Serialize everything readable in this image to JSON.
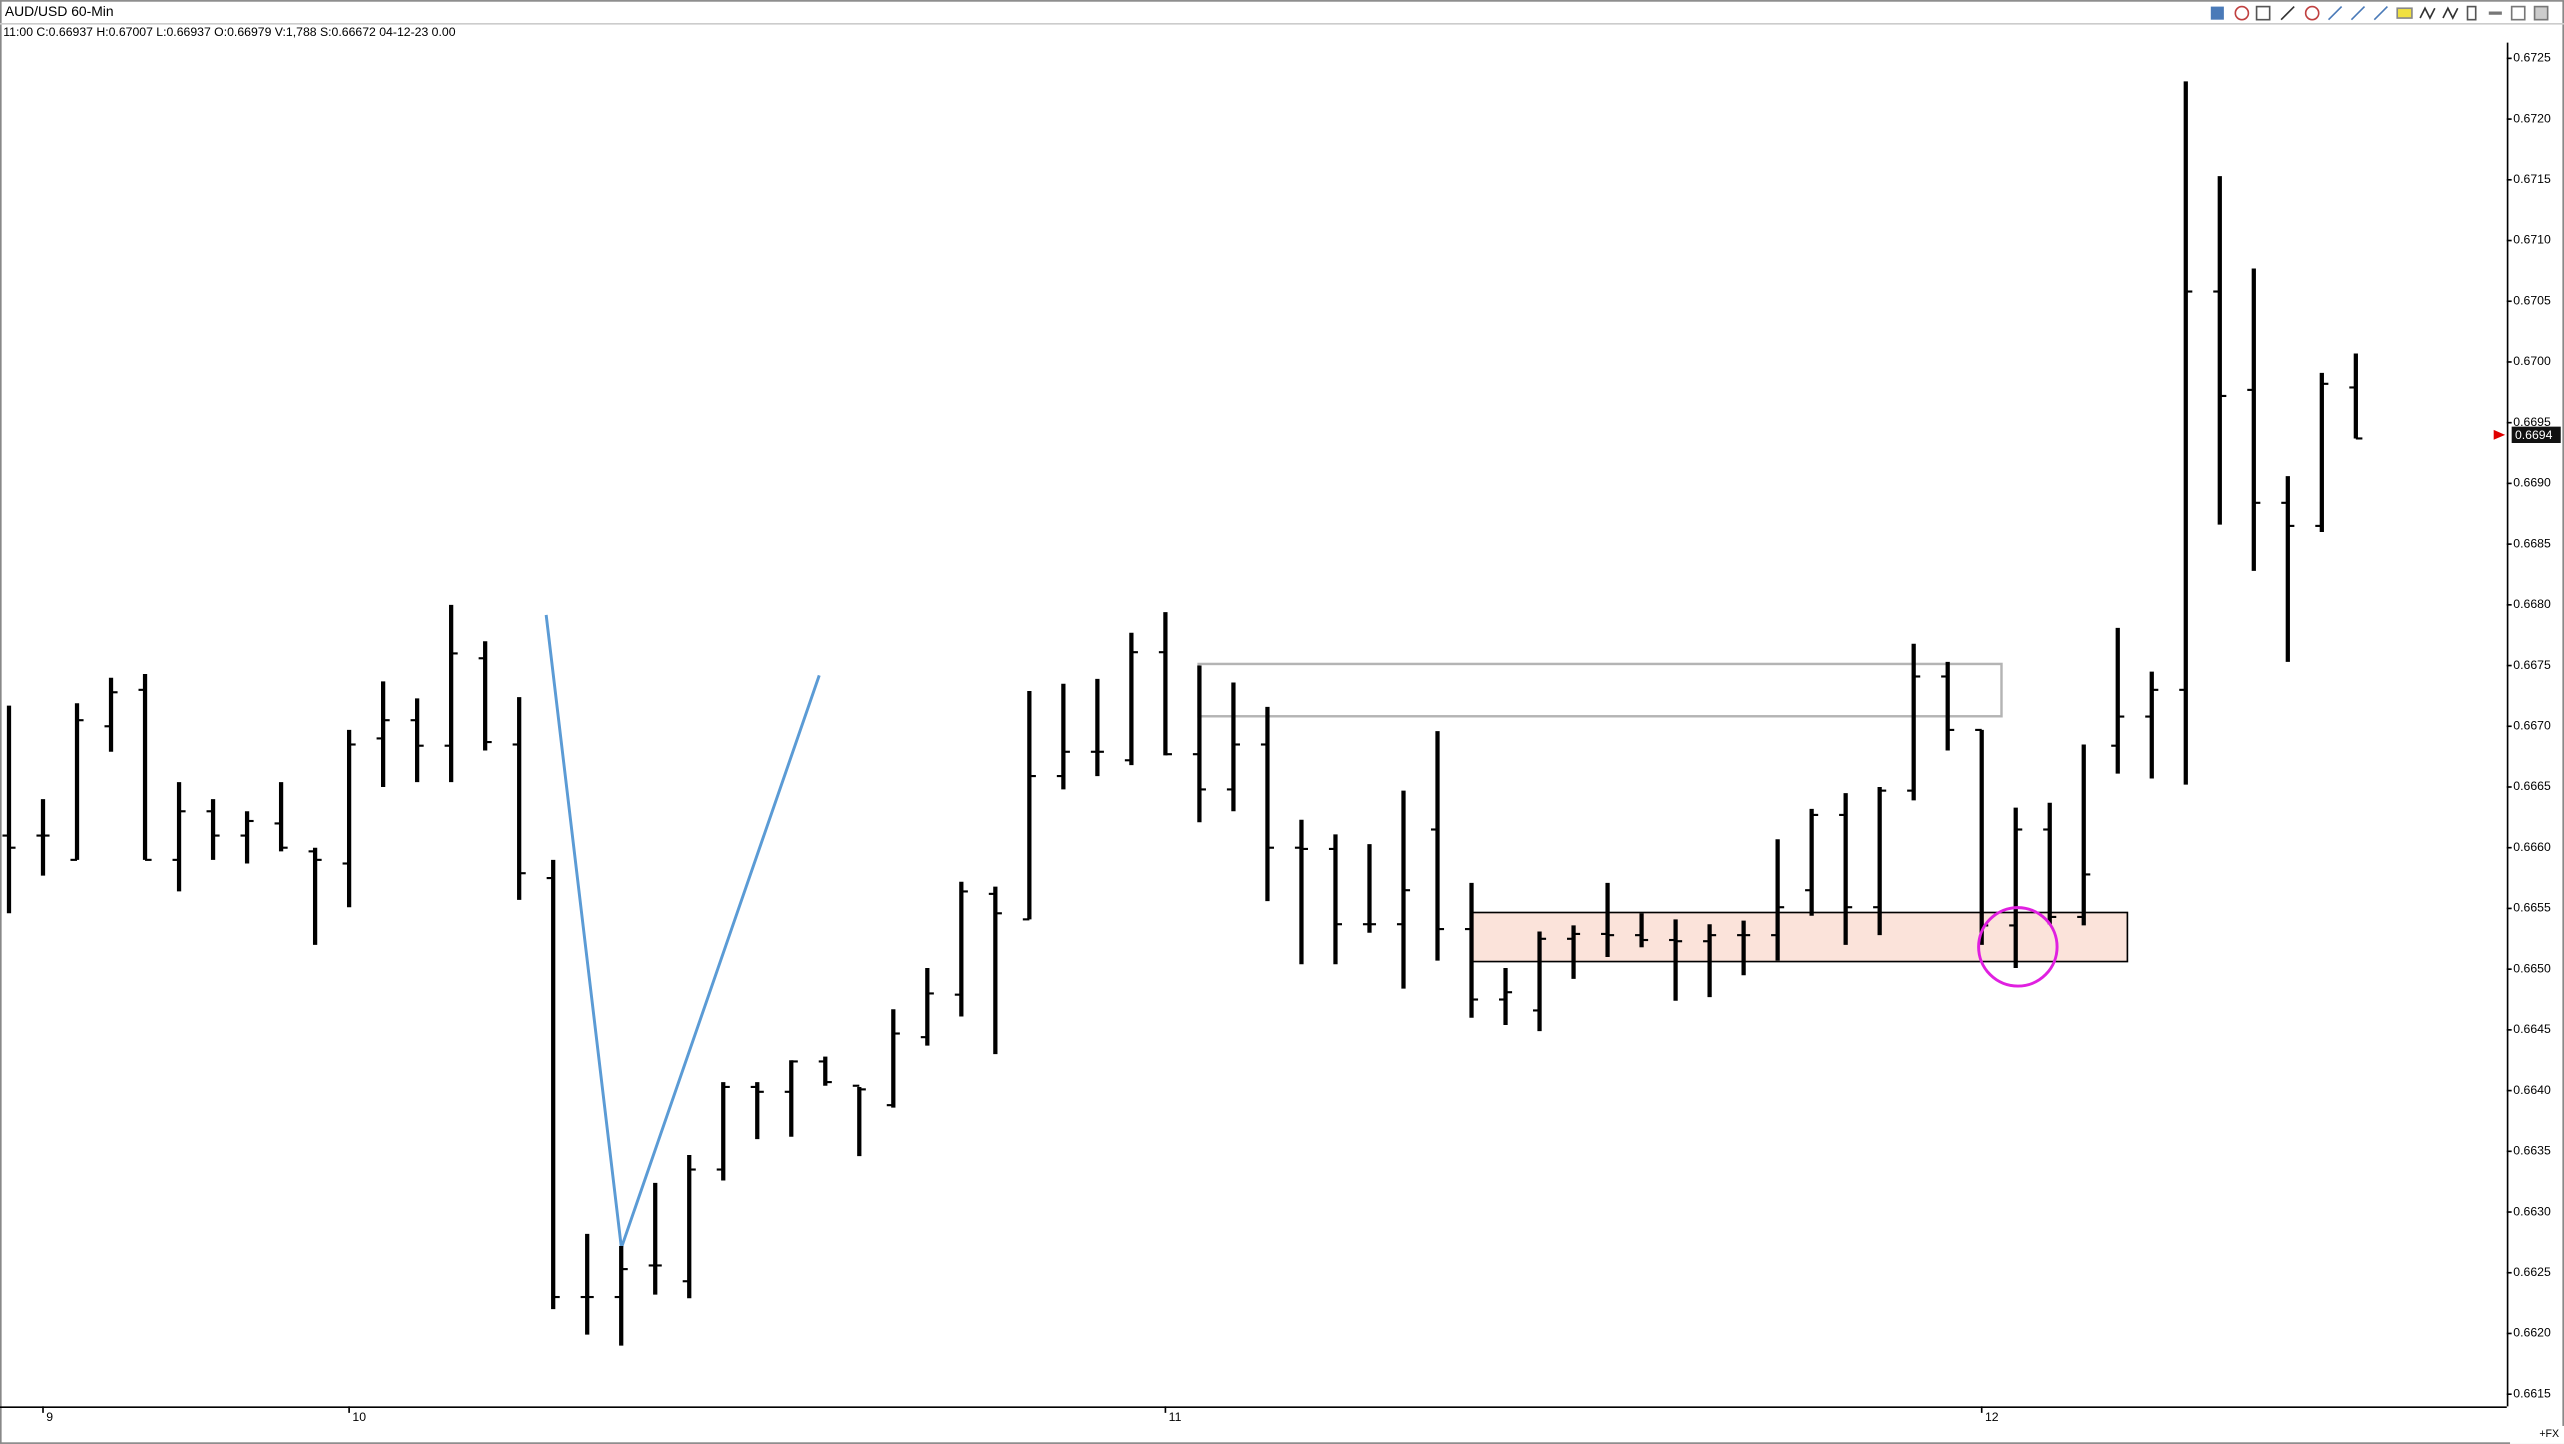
{
  "chart_data": {
    "type": "ohlc",
    "title": "AUD/USD 60-Min",
    "subtitle": "11:00 C:0.66937 H:0.67007 L:0.66937 O:0.66979 V:1,788 S:0.66672 04-12-23 0.00",
    "footer_label": "+FX",
    "color": "#000000",
    "last_price": 0.6694,
    "last_price_color": "#e00000",
    "categories": [
      null,
      "9",
      null,
      null,
      null,
      null,
      null,
      null,
      null,
      null,
      "10",
      null,
      null,
      null,
      null,
      null,
      null,
      null,
      null,
      null,
      null,
      null,
      null,
      null,
      null,
      null,
      null,
      null,
      null,
      null,
      null,
      null,
      null,
      null,
      "11",
      null,
      null,
      null,
      null,
      null,
      null,
      null,
      null,
      null,
      null,
      null,
      null,
      null,
      null,
      null,
      null,
      null,
      null,
      null,
      null,
      null,
      null,
      null,
      "12",
      null,
      null,
      null,
      null,
      null,
      null,
      null,
      null,
      null,
      null,
      null
    ],
    "open": [
      0.6661,
      0.6661,
      0.6659,
      0.667,
      0.6673,
      0.6659,
      0.6663,
      0.6661,
      0.6662,
      0.66597,
      0.66587,
      0.6669,
      0.66705,
      0.66684,
      0.66756,
      0.66685,
      0.66575,
      0.6623,
      0.6623,
      0.66256,
      0.66243,
      0.66335,
      0.66403,
      0.66399,
      0.66424,
      0.66404,
      0.66388,
      0.66444,
      0.66479,
      0.66562,
      0.66541,
      0.66659,
      0.66679,
      0.66672,
      0.66761,
      0.66677,
      0.66648,
      0.66685,
      0.666,
      0.66599,
      0.66537,
      0.66537,
      0.66615,
      0.66533,
      0.66475,
      0.66466,
      0.66525,
      0.66529,
      0.66528,
      0.66524,
      0.66523,
      0.66528,
      0.66528,
      0.66565,
      0.66627,
      0.66551,
      0.66647,
      0.66741,
      0.66697,
      0.66536,
      0.66615,
      0.66543,
      0.66684,
      0.66708,
      0.6673,
      0.67058,
      0.66977,
      0.66884,
      0.66865,
      0.66979
    ],
    "high": [
      0.66717,
      0.6664,
      0.66719,
      0.6674,
      0.66743,
      0.66654,
      0.6664,
      0.6663,
      0.66654,
      0.666,
      0.66697,
      0.66737,
      0.66723,
      0.668,
      0.6677,
      0.66724,
      0.6659,
      0.66282,
      0.66272,
      0.66324,
      0.66347,
      0.66407,
      0.66407,
      0.66425,
      0.66428,
      0.66403,
      0.66467,
      0.66501,
      0.66572,
      0.66568,
      0.66729,
      0.66735,
      0.66739,
      0.66777,
      0.66794,
      0.6675,
      0.66736,
      0.66716,
      0.66623,
      0.66611,
      0.66603,
      0.66647,
      0.66696,
      0.66571,
      0.66501,
      0.66531,
      0.66536,
      0.66571,
      0.66546,
      0.66541,
      0.66537,
      0.6654,
      0.66607,
      0.66632,
      0.66645,
      0.6665,
      0.66768,
      0.66753,
      0.66697,
      0.66633,
      0.66637,
      0.66685,
      0.66781,
      0.66745,
      0.67231,
      0.67153,
      0.67077,
      0.66906,
      0.66991,
      0.67007
    ],
    "low": [
      0.66546,
      0.66577,
      0.6659,
      0.66679,
      0.6659,
      0.66564,
      0.6659,
      0.66587,
      0.66597,
      0.6652,
      0.66551,
      0.6665,
      0.66654,
      0.66654,
      0.6668,
      0.66557,
      0.6622,
      0.66199,
      0.6619,
      0.66232,
      0.66229,
      0.66326,
      0.6636,
      0.66362,
      0.66404,
      0.66346,
      0.66386,
      0.66437,
      0.66461,
      0.6643,
      0.66541,
      0.66648,
      0.66659,
      0.66668,
      0.66676,
      0.66621,
      0.6663,
      0.66556,
      0.66504,
      0.66504,
      0.6653,
      0.66484,
      0.66507,
      0.6646,
      0.66454,
      0.66449,
      0.66492,
      0.6651,
      0.66518,
      0.66474,
      0.66477,
      0.66495,
      0.66507,
      0.66544,
      0.6652,
      0.66528,
      0.66639,
      0.6668,
      0.6652,
      0.66501,
      0.66537,
      0.66536,
      0.66661,
      0.66657,
      0.66652,
      0.66866,
      0.66828,
      0.66753,
      0.6686,
      0.66937
    ],
    "close": [
      0.666,
      0.6661,
      0.66705,
      0.66728,
      0.6659,
      0.6663,
      0.6661,
      0.66622,
      0.666,
      0.6659,
      0.66685,
      0.66705,
      0.66684,
      0.6676,
      0.66687,
      0.66579,
      0.6623,
      0.6623,
      0.66253,
      0.66256,
      0.66335,
      0.66403,
      0.66399,
      0.66424,
      0.66407,
      0.66401,
      0.66447,
      0.6648,
      0.66564,
      0.66546,
      0.66659,
      0.66679,
      0.66679,
      0.66761,
      0.66677,
      0.66648,
      0.66685,
      0.666,
      0.66599,
      0.66537,
      0.66537,
      0.66565,
      0.66533,
      0.66475,
      0.66481,
      0.66525,
      0.66529,
      0.66528,
      0.66524,
      0.66523,
      0.66528,
      0.66528,
      0.66551,
      0.66627,
      0.66551,
      0.66647,
      0.66741,
      0.66697,
      0.66536,
      0.66615,
      0.66543,
      0.66578,
      0.66708,
      0.6673,
      0.67058,
      0.66972,
      0.66884,
      0.66865,
      0.66982,
      0.66937
    ],
    "ylim": [
      0.6614,
      0.67263
    ],
    "yticks": [
      0.6615,
      {
        "value": 0.662,
        "label": "0.6620"
      },
      0.6625,
      {
        "value": 0.663,
        "label": "0.6630"
      },
      0.6635,
      {
        "value": 0.664,
        "label": "0.6640"
      },
      0.6645,
      {
        "value": 0.665,
        "label": "0.6650"
      },
      0.6655,
      {
        "value": 0.666,
        "label": "0.6660"
      },
      0.6665,
      {
        "value": 0.667,
        "label": "0.6670"
      },
      0.6675,
      {
        "value": 0.668,
        "label": "0.6680"
      },
      0.6685,
      {
        "value": 0.669,
        "label": "0.6690"
      },
      0.6695,
      {
        "value": 0.67,
        "label": "0.6700"
      },
      0.6705,
      {
        "value": 0.671,
        "label": "0.6710"
      },
      0.6715,
      {
        "value": 0.672,
        "label": "0.6720"
      },
      0.6725
    ],
    "grid": false
  }
}
